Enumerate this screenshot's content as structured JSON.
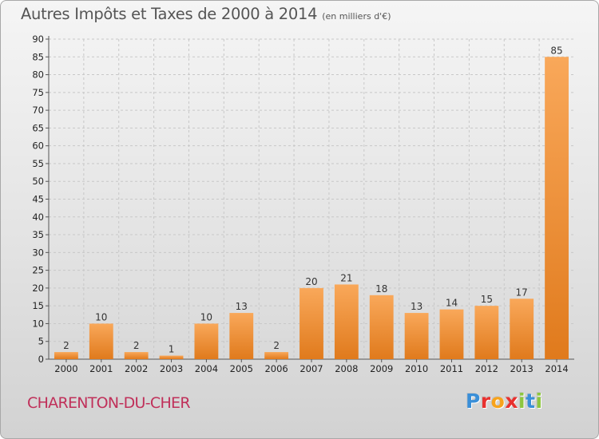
{
  "title": "Autres Impôts et Taxes de 2000 à 2014",
  "subtitle": "(en milliers d'€)",
  "town": "CHARENTON-DU-CHER",
  "logo": {
    "text": "Proxiti",
    "letters": [
      {
        "char": "P",
        "color": "#3a8fd8"
      },
      {
        "char": "r",
        "color": "#e8312f"
      },
      {
        "char": "o",
        "color": "#f7a31c"
      },
      {
        "char": "x",
        "color": "#e8312f"
      },
      {
        "char": "i",
        "color": "#8dc63f"
      },
      {
        "char": "t",
        "color": "#3a8fd8"
      },
      {
        "char": "i",
        "color": "#8dc63f"
      }
    ]
  },
  "colors": {
    "bar_light": "#f9a85a",
    "bar_dark": "#e07a1c",
    "grid": "#c8c8c8",
    "town": "#c0305a"
  },
  "chart_data": {
    "type": "bar",
    "title": "Autres Impôts et Taxes de 2000 à 2014",
    "subtitle": "(en milliers d'€)",
    "xlabel": "",
    "ylabel": "",
    "categories": [
      "2000",
      "2001",
      "2002",
      "2003",
      "2004",
      "2005",
      "2006",
      "2007",
      "2008",
      "2009",
      "2010",
      "2011",
      "2012",
      "2013",
      "2014"
    ],
    "values": [
      2,
      10,
      2,
      1,
      10,
      13,
      2,
      20,
      21,
      18,
      13,
      14,
      15,
      17,
      85
    ],
    "ylim": [
      0,
      90
    ],
    "yticks": [
      0,
      5,
      10,
      15,
      20,
      25,
      30,
      35,
      40,
      45,
      50,
      55,
      60,
      65,
      70,
      75,
      80,
      85,
      90
    ],
    "grid": true,
    "data_labels": true
  }
}
